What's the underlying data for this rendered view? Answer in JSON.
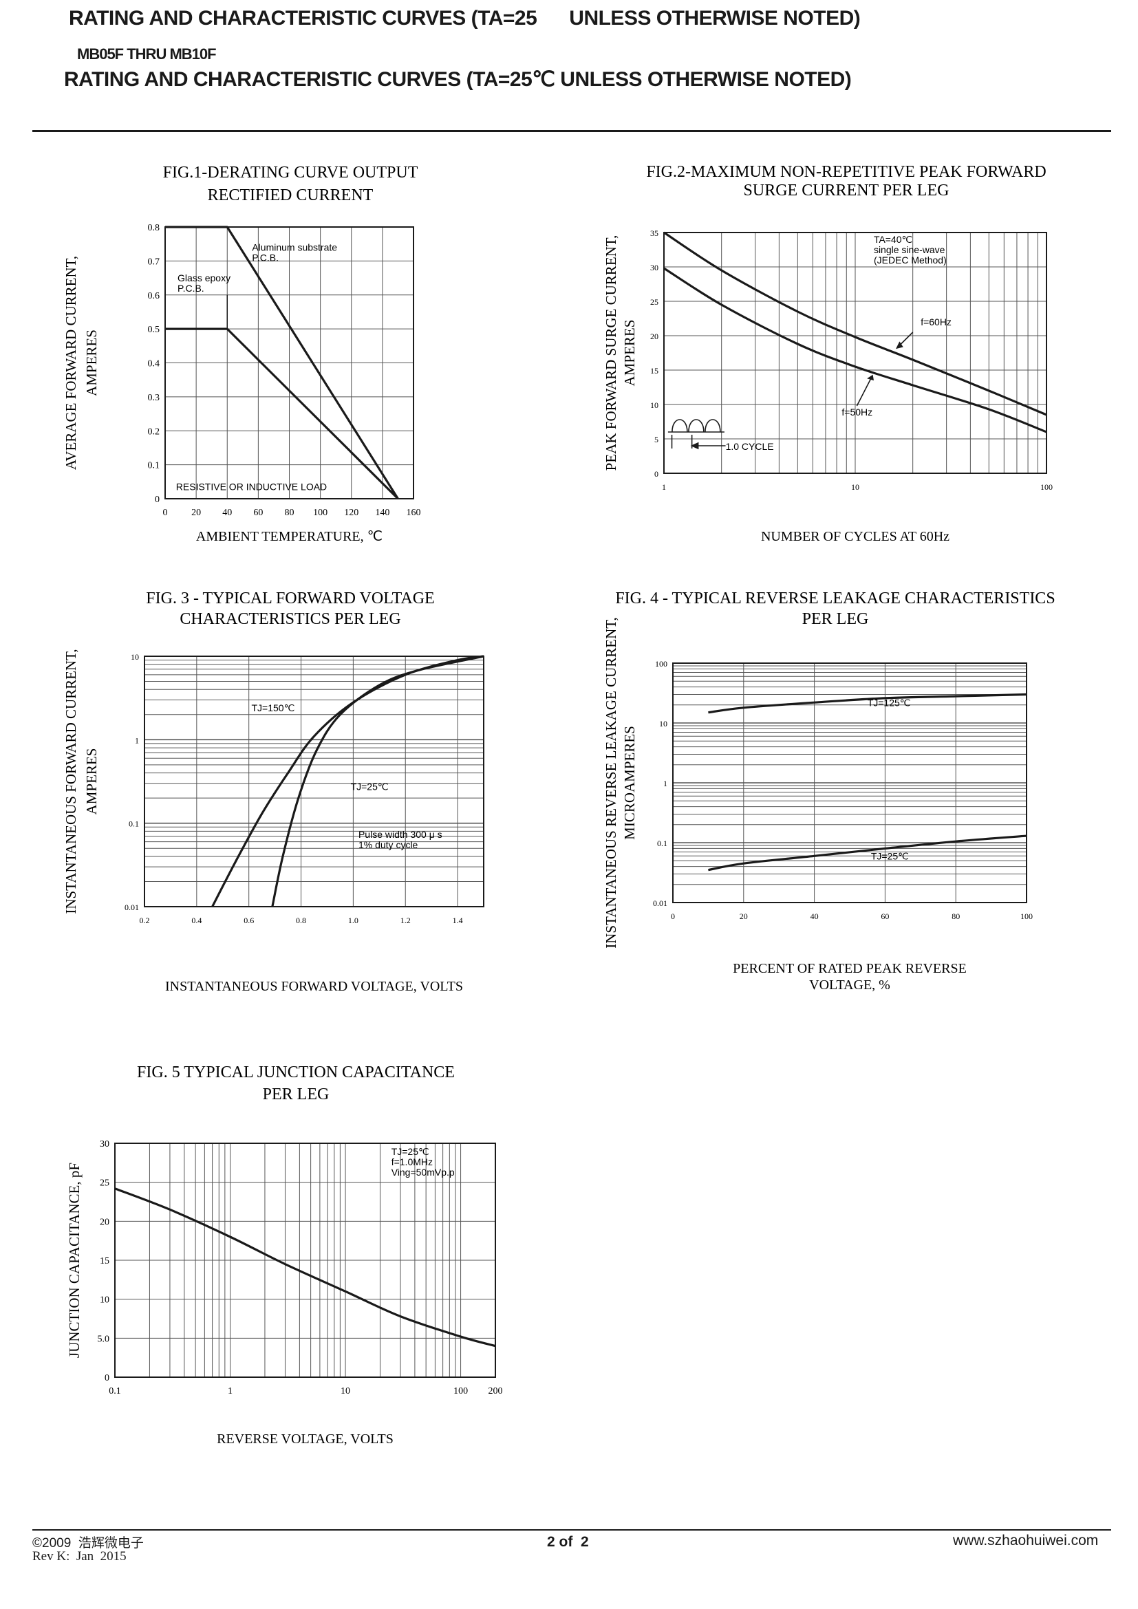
{
  "header": {
    "line1": "RATING AND CHARACTERISTIC CURVES (TA=25      UNLESS OTHERWISE NOTED)",
    "line2": "MB05F THRU MB10F",
    "line3": "RATING AND CHARACTERISTIC CURVES (TA=25℃ UNLESS OTHERWISE NOTED)"
  },
  "footer": {
    "copyright": "©2009  浩辉微电子",
    "revision": "Rev K:  Jan  2015",
    "page": "2 of  2",
    "website": "www.szhaohuiwei.com"
  },
  "colors": {
    "ink": "#1a1a1a",
    "grid": "#555555",
    "background": "#ffffff"
  },
  "chart_data": [
    {
      "id": "fig1",
      "type": "line",
      "title": "FIG.1-DERATING CURVE OUTPUT",
      "subtitle": "RECTIFIED  CURRENT",
      "xlabel": "AMBIENT TEMPERATURE, ℃",
      "ylabel": "AVERAGE FORWARD CURRENT,",
      "ylabel2": "AMPERES",
      "xscale": "linear",
      "yscale": "linear",
      "xlim": [
        0,
        160
      ],
      "ylim": [
        0,
        0.8
      ],
      "xticks": [
        0,
        20,
        40,
        60,
        80,
        100,
        120,
        140,
        160
      ],
      "xtick_labels": [
        "0",
        "20",
        "40",
        "60",
        "80",
        "100",
        "120",
        "140",
        "160"
      ],
      "yticks": [
        0,
        0.1,
        0.2,
        0.3,
        0.4,
        0.5,
        0.6,
        0.7,
        0.8
      ],
      "ytick_labels": [
        "0",
        "0.1",
        "0.2",
        "0.3",
        "0.4",
        "0.5",
        "0.6",
        "0.7",
        "0.8"
      ],
      "grid": true,
      "series": [
        {
          "name": "Aluminum substrate P.C.B.",
          "x": [
            0,
            40,
            150
          ],
          "y": [
            0.8,
            0.8,
            0
          ]
        },
        {
          "name": "Glass epoxy P.C.B.",
          "x": [
            0,
            40,
            150
          ],
          "y": [
            0.5,
            0.5,
            0
          ]
        }
      ],
      "annotations": [
        {
          "lines": [
            "Aluminum substrate",
            "P.C.B."
          ],
          "at": [
            56,
            0.73
          ],
          "arrow": [
            46,
            0.76,
            52,
            0.71
          ]
        },
        {
          "lines": [
            "Glass epoxy",
            "P.C.B."
          ],
          "at": [
            8,
            0.64
          ],
          "arrow": [
            40,
            0.6,
            40,
            0.5
          ]
        },
        {
          "lines": [
            "RESISTIVE OR INDUCTIVE LOAD"
          ],
          "at": [
            7,
            0.025
          ]
        }
      ]
    },
    {
      "id": "fig2",
      "type": "line",
      "title": "FIG.2-MAXIMUM NON-REPETITIVE PEAK FORWARD",
      "subtitle": "SURGE CURRENT PER LEG",
      "xlabel": "NUMBER OF CYCLES AT 60Hz",
      "ylabel": "PEAK FORWARD SURGE CURRENT,",
      "ylabel2": "AMPERES",
      "xscale": "log",
      "yscale": "linear",
      "xlim": [
        1,
        100
      ],
      "ylim": [
        0,
        35
      ],
      "xticks": [
        1,
        10,
        100
      ],
      "xtick_labels": [
        "1",
        "10",
        "100"
      ],
      "yticks": [
        0,
        5,
        10,
        15,
        20,
        25,
        30,
        35
      ],
      "ytick_labels": [
        "0",
        "5",
        "10",
        "15",
        "20",
        "25",
        "30",
        "35"
      ],
      "grid": true,
      "series": [
        {
          "name": "f=60Hz",
          "x": [
            1,
            2,
            5,
            10,
            20,
            50,
            100
          ],
          "y": [
            35,
            29.5,
            23.5,
            19.8,
            16.5,
            12,
            8.5
          ]
        },
        {
          "name": "f=50Hz",
          "x": [
            1,
            2,
            5,
            10,
            20,
            50,
            100
          ],
          "y": [
            29.8,
            24.5,
            18.8,
            15.5,
            12.8,
            9.3,
            6
          ]
        }
      ],
      "annotations": [
        {
          "lines": [
            "TA=40℃",
            "single sine-wave",
            "(JEDEC Method)"
          ],
          "at": [
            12.5,
            33.5
          ]
        },
        {
          "lines": [
            "f=60Hz"
          ],
          "at": [
            22,
            21.5
          ]
        },
        {
          "lines": [
            "f=50Hz"
          ],
          "at": [
            8.5,
            8.4
          ]
        },
        {
          "lines": [
            "1.0 CYCLE"
          ],
          "at": [
            2.1,
            3.4
          ]
        }
      ]
    },
    {
      "id": "fig3",
      "type": "line",
      "title": "FIG. 3 - TYPICAL  FORWARD VOLTAGE",
      "subtitle": "CHARACTERISTICS PER LEG",
      "xlabel": "INSTANTANEOUS FORWARD VOLTAGE, VOLTS",
      "ylabel": "INSTANTANEOUS FORWARD CURRENT,",
      "ylabel2": "AMPERES",
      "xscale": "linear",
      "yscale": "log",
      "xlim": [
        0.2,
        1.5
      ],
      "ylim": [
        0.01,
        10
      ],
      "xticks": [
        0.2,
        0.4,
        0.6,
        0.8,
        1.0,
        1.2,
        1.4
      ],
      "xtick_labels": [
        "0.2",
        "0.4",
        "0.6",
        "0.8",
        "1.0",
        "1.2",
        "1.4"
      ],
      "yticks": [
        0.01,
        0.1,
        1,
        10
      ],
      "ytick_labels": [
        "0.01",
        "0.1",
        "1",
        "10"
      ],
      "grid": true,
      "series": [
        {
          "name": "TJ=150℃",
          "x": [
            0.46,
            0.55,
            0.65,
            0.75,
            0.85,
            1.0,
            1.2,
            1.4,
            1.5
          ],
          "y": [
            0.01,
            0.035,
            0.13,
            0.4,
            1.1,
            2.8,
            6,
            9,
            10
          ]
        },
        {
          "name": "TJ=25℃",
          "x": [
            0.69,
            0.73,
            0.79,
            0.86,
            0.95,
            1.1,
            1.25,
            1.5
          ],
          "y": [
            0.01,
            0.04,
            0.2,
            0.75,
            2,
            4.5,
            6.8,
            10
          ]
        }
      ],
      "annotations": [
        {
          "lines": [
            "TJ=150℃"
          ],
          "at": [
            0.61,
            2.2
          ]
        },
        {
          "lines": [
            "TJ=25℃"
          ],
          "at": [
            0.99,
            0.25
          ]
        },
        {
          "lines": [
            "Pulse width 300 μ s",
            "1% duty cycle"
          ],
          "at": [
            1.02,
            0.067
          ]
        }
      ]
    },
    {
      "id": "fig4",
      "type": "line",
      "title": "FIG. 4 - TYPICAL REVERSE LEAKAGE CHARACTERISTICS",
      "subtitle": "PER LEG",
      "xlabel": "PERCENT OF RATED PEAK REVERSE",
      "xlabel2": "VOLTAGE, %",
      "ylabel": "INSTANTANEOUS REVERSE LEAKAGE CURRENT,",
      "ylabel2": "MICROAMPERES",
      "xscale": "linear",
      "yscale": "log",
      "xlim": [
        0,
        100
      ],
      "ylim": [
        0.01,
        100
      ],
      "xticks": [
        0,
        20,
        40,
        60,
        80,
        100
      ],
      "xtick_labels": [
        "0",
        "20",
        "40",
        "60",
        "80",
        "100"
      ],
      "yticks": [
        0.01,
        0.1,
        1,
        10,
        100
      ],
      "ytick_labels": [
        "0.01",
        "0.1",
        "1",
        "10",
        "100"
      ],
      "grid": true,
      "series": [
        {
          "name": "TJ=125℃",
          "x": [
            10,
            20,
            40,
            60,
            80,
            100
          ],
          "y": [
            15,
            18,
            22,
            26,
            28,
            30
          ]
        },
        {
          "name": "TJ=25℃",
          "x": [
            10,
            20,
            40,
            60,
            80,
            100
          ],
          "y": [
            0.035,
            0.045,
            0.06,
            0.08,
            0.105,
            0.13
          ]
        }
      ],
      "annotations": [
        {
          "lines": [
            "TJ=125℃"
          ],
          "at": [
            55,
            19
          ]
        },
        {
          "lines": [
            "TJ=25℃"
          ],
          "at": [
            56,
            0.052
          ]
        }
      ]
    },
    {
      "id": "fig5",
      "type": "line",
      "title": "FIG. 5  TYPICAL JUNCTION CAPACITANCE",
      "subtitle": "PER LEG",
      "xlabel": "REVERSE VOLTAGE, VOLTS",
      "ylabel": "JUNCTION CAPACITANCE, pF",
      "xscale": "log",
      "yscale": "linear",
      "xlim": [
        0.1,
        200
      ],
      "ylim": [
        0,
        30
      ],
      "xticks": [
        0.1,
        1,
        10,
        100,
        200
      ],
      "xtick_labels": [
        "0.1",
        "1",
        "10",
        "100",
        "200"
      ],
      "yticks": [
        0,
        5,
        10,
        15,
        20,
        25,
        30
      ],
      "ytick_labels": [
        "0",
        "5.0",
        "10",
        "15",
        "20",
        "25",
        "30"
      ],
      "grid": true,
      "series": [
        {
          "name": "",
          "x": [
            0.1,
            0.3,
            1,
            3,
            10,
            30,
            100,
            200
          ],
          "y": [
            24.2,
            21.5,
            18,
            14.5,
            11,
            7.8,
            5.2,
            4
          ]
        }
      ],
      "annotations": [
        {
          "lines": [
            "TJ=25℃",
            "f=1.0MHz",
            "Ving=50mVp.p"
          ],
          "at": [
            25,
            28.5
          ]
        }
      ]
    }
  ]
}
